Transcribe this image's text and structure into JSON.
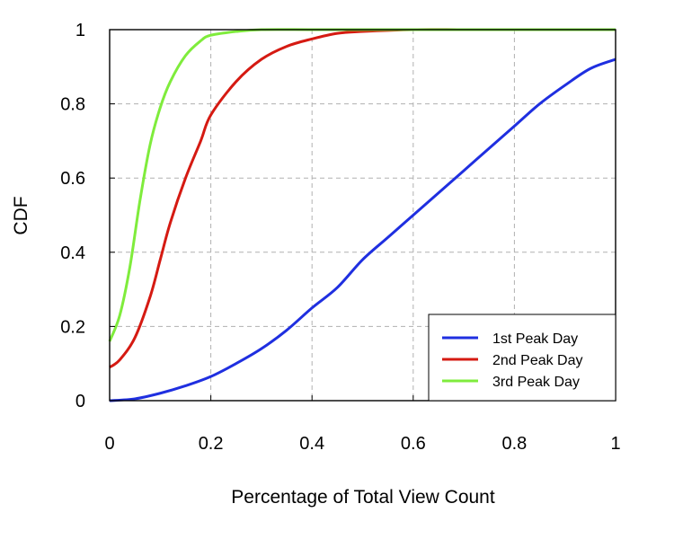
{
  "chart_data": {
    "type": "line",
    "title": "",
    "xlabel": "Percentage of Total View Count",
    "ylabel": "CDF",
    "xlim": [
      0,
      1
    ],
    "ylim": [
      0,
      1
    ],
    "grid": true,
    "legend_position": "bottom-right",
    "x_ticks": [
      "0",
      "0.2",
      "0.4",
      "0.6",
      "0.8",
      "1"
    ],
    "y_ticks": [
      "0",
      "0.2",
      "0.4",
      "0.6",
      "0.8",
      "1"
    ],
    "series": [
      {
        "name": "1st Peak Day",
        "color": "#1f2fe0",
        "x": [
          0,
          0.05,
          0.1,
          0.15,
          0.2,
          0.25,
          0.3,
          0.35,
          0.4,
          0.45,
          0.5,
          0.55,
          0.6,
          0.65,
          0.7,
          0.75,
          0.8,
          0.85,
          0.9,
          0.95,
          1.0
        ],
        "y": [
          0,
          0.005,
          0.02,
          0.04,
          0.065,
          0.1,
          0.14,
          0.19,
          0.25,
          0.305,
          0.38,
          0.44,
          0.5,
          0.56,
          0.62,
          0.68,
          0.74,
          0.8,
          0.85,
          0.895,
          0.92
        ]
      },
      {
        "name": "2nd Peak Day",
        "color": "#d51a12",
        "x": [
          0,
          0.02,
          0.05,
          0.08,
          0.1,
          0.12,
          0.15,
          0.18,
          0.2,
          0.25,
          0.3,
          0.35,
          0.4,
          0.45,
          0.5,
          0.6,
          0.7,
          0.8,
          0.9,
          1.0
        ],
        "y": [
          0.09,
          0.11,
          0.17,
          0.28,
          0.38,
          0.48,
          0.6,
          0.7,
          0.77,
          0.86,
          0.92,
          0.955,
          0.975,
          0.99,
          0.995,
          1.0,
          1.0,
          1.0,
          1.0,
          1.0
        ]
      },
      {
        "name": "3rd Peak Day",
        "color": "#7fec3c",
        "x": [
          0,
          0.02,
          0.04,
          0.06,
          0.08,
          0.1,
          0.12,
          0.15,
          0.18,
          0.2,
          0.25,
          0.3,
          0.4,
          0.5,
          0.6,
          0.8,
          1.0
        ],
        "y": [
          0.16,
          0.23,
          0.36,
          0.54,
          0.69,
          0.79,
          0.86,
          0.93,
          0.97,
          0.985,
          0.995,
          1.0,
          1.0,
          1.0,
          1.0,
          1.0,
          1.0
        ]
      }
    ]
  }
}
